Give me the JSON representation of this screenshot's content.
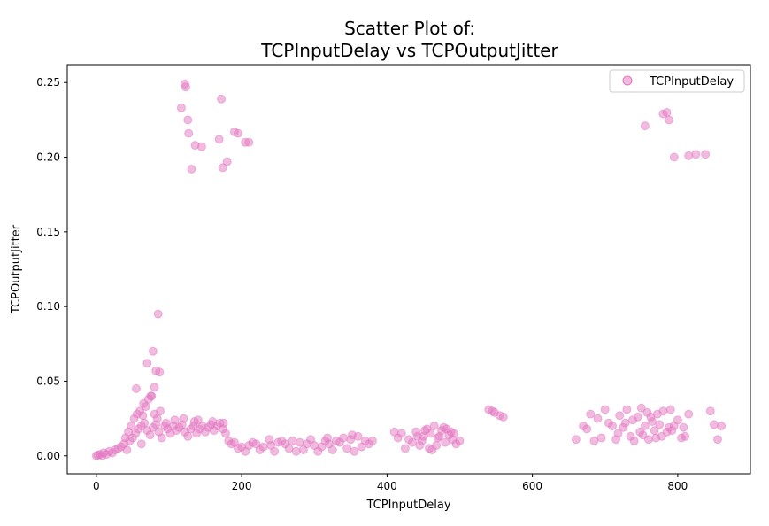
{
  "chart_data": {
    "type": "scatter",
    "title_line1": "Scatter Plot of:",
    "title_line2": "TCPInputDelay vs TCPOutputJitter",
    "xlabel": "TCPInputDelay",
    "ylabel": "TCPOutputJitter",
    "xlim": [
      -40,
      900
    ],
    "ylim": [
      -0.012,
      0.262
    ],
    "x_ticks": [
      0,
      200,
      400,
      600,
      800
    ],
    "x_tick_labels": [
      "0",
      "200",
      "400",
      "600",
      "800"
    ],
    "y_ticks": [
      0.0,
      0.05,
      0.1,
      0.15,
      0.2,
      0.25
    ],
    "y_tick_labels": [
      "0.00",
      "0.05",
      "0.10",
      "0.15",
      "0.20",
      "0.25"
    ],
    "grid": false,
    "legend_position": "top-right",
    "series": [
      {
        "name": "TCPInputDelay",
        "color": "#e377c2",
        "opacity": 0.5,
        "points": [
          [
            0,
            0.0
          ],
          [
            2,
            0.0005
          ],
          [
            5,
            0.001
          ],
          [
            8,
            0.0
          ],
          [
            10,
            0.002
          ],
          [
            14,
            0.001
          ],
          [
            18,
            0.003
          ],
          [
            22,
            0.002
          ],
          [
            26,
            0.004
          ],
          [
            30,
            0.005
          ],
          [
            34,
            0.006
          ],
          [
            38,
            0.008
          ],
          [
            42,
            0.004
          ],
          [
            46,
            0.01
          ],
          [
            50,
            0.012
          ],
          [
            54,
            0.015
          ],
          [
            58,
            0.018
          ],
          [
            62,
            0.02
          ],
          [
            66,
            0.022
          ],
          [
            70,
            0.017
          ],
          [
            74,
            0.014
          ],
          [
            78,
            0.019
          ],
          [
            82,
            0.021
          ],
          [
            86,
            0.016
          ],
          [
            90,
            0.012
          ],
          [
            94,
            0.02
          ],
          [
            98,
            0.018
          ],
          [
            102,
            0.015
          ],
          [
            106,
            0.02
          ],
          [
            110,
            0.017
          ],
          [
            114,
            0.019
          ],
          [
            118,
            0.021
          ],
          [
            122,
            0.016
          ],
          [
            126,
            0.013
          ],
          [
            130,
            0.018
          ],
          [
            134,
            0.02
          ],
          [
            138,
            0.015
          ],
          [
            142,
            0.018
          ],
          [
            146,
            0.02
          ],
          [
            150,
            0.016
          ],
          [
            154,
            0.019
          ],
          [
            158,
            0.021
          ],
          [
            162,
            0.017
          ],
          [
            166,
            0.02
          ],
          [
            170,
            0.022
          ],
          [
            174,
            0.018
          ],
          [
            178,
            0.015
          ],
          [
            182,
            0.01
          ],
          [
            186,
            0.008
          ],
          [
            190,
            0.009
          ],
          [
            40,
            0.012
          ],
          [
            44,
            0.016
          ],
          [
            48,
            0.02
          ],
          [
            52,
            0.025
          ],
          [
            56,
            0.028
          ],
          [
            60,
            0.03
          ],
          [
            64,
            0.027
          ],
          [
            68,
            0.033
          ],
          [
            72,
            0.038
          ],
          [
            76,
            0.04
          ],
          [
            80,
            0.028
          ],
          [
            84,
            0.025
          ],
          [
            88,
            0.03
          ],
          [
            55,
            0.045
          ],
          [
            65,
            0.035
          ],
          [
            70,
            0.062
          ],
          [
            78,
            0.07
          ],
          [
            82,
            0.057
          ],
          [
            87,
            0.056
          ],
          [
            80,
            0.046
          ],
          [
            75,
            0.04
          ],
          [
            85,
            0.095
          ],
          [
            62,
            0.008
          ],
          [
            96,
            0.022
          ],
          [
            108,
            0.024
          ],
          [
            120,
            0.025
          ],
          [
            140,
            0.024
          ],
          [
            160,
            0.023
          ],
          [
            175,
            0.022
          ],
          [
            135,
            0.023
          ],
          [
            200,
            0.006
          ],
          [
            210,
            0.007
          ],
          [
            220,
            0.008
          ],
          [
            230,
            0.006
          ],
          [
            240,
            0.007
          ],
          [
            250,
            0.009
          ],
          [
            260,
            0.008
          ],
          [
            270,
            0.01
          ],
          [
            280,
            0.009
          ],
          [
            290,
            0.008
          ],
          [
            300,
            0.007
          ],
          [
            310,
            0.006
          ],
          [
            320,
            0.008
          ],
          [
            330,
            0.01
          ],
          [
            340,
            0.012
          ],
          [
            350,
            0.011
          ],
          [
            360,
            0.013
          ],
          [
            370,
            0.01
          ],
          [
            205,
            0.003
          ],
          [
            225,
            0.004
          ],
          [
            245,
            0.003
          ],
          [
            265,
            0.005
          ],
          [
            285,
            0.004
          ],
          [
            305,
            0.003
          ],
          [
            325,
            0.004
          ],
          [
            345,
            0.005
          ],
          [
            365,
            0.006
          ],
          [
            215,
            0.009
          ],
          [
            255,
            0.01
          ],
          [
            295,
            0.011
          ],
          [
            335,
            0.009
          ],
          [
            375,
            0.008
          ],
          [
            380,
            0.01
          ],
          [
            195,
            0.005
          ],
          [
            275,
            0.003
          ],
          [
            315,
            0.01
          ],
          [
            355,
            0.003
          ],
          [
            238,
            0.011
          ],
          [
            318,
            0.012
          ],
          [
            352,
            0.014
          ],
          [
            410,
            0.016
          ],
          [
            415,
            0.012
          ],
          [
            420,
            0.015
          ],
          [
            425,
            0.005
          ],
          [
            430,
            0.011
          ],
          [
            435,
            0.009
          ],
          [
            440,
            0.016
          ],
          [
            445,
            0.007
          ],
          [
            450,
            0.013
          ],
          [
            455,
            0.018
          ],
          [
            460,
            0.015
          ],
          [
            465,
            0.02
          ],
          [
            470,
            0.012
          ],
          [
            475,
            0.017
          ],
          [
            480,
            0.009
          ],
          [
            485,
            0.014
          ],
          [
            490,
            0.011
          ],
          [
            495,
            0.008
          ],
          [
            500,
            0.01
          ],
          [
            458,
            0.005
          ],
          [
            468,
            0.007
          ],
          [
            478,
            0.019
          ],
          [
            488,
            0.016
          ],
          [
            448,
            0.01
          ],
          [
            462,
            0.004
          ],
          [
            472,
            0.013
          ],
          [
            482,
            0.018
          ],
          [
            452,
            0.017
          ],
          [
            442,
            0.013
          ],
          [
            492,
            0.015
          ],
          [
            540,
            0.031
          ],
          [
            545,
            0.03
          ],
          [
            548,
            0.029
          ],
          [
            555,
            0.027
          ],
          [
            560,
            0.026
          ],
          [
            660,
            0.011
          ],
          [
            670,
            0.02
          ],
          [
            675,
            0.018
          ],
          [
            680,
            0.028
          ],
          [
            685,
            0.01
          ],
          [
            690,
            0.025
          ],
          [
            695,
            0.012
          ],
          [
            700,
            0.031
          ],
          [
            705,
            0.022
          ],
          [
            710,
            0.02
          ],
          [
            715,
            0.011
          ],
          [
            720,
            0.027
          ],
          [
            725,
            0.019
          ],
          [
            730,
            0.031
          ],
          [
            735,
            0.013
          ],
          [
            740,
            0.01
          ],
          [
            745,
            0.026
          ],
          [
            750,
            0.032
          ],
          [
            752,
            0.014
          ],
          [
            755,
            0.02
          ],
          [
            758,
            0.029
          ],
          [
            760,
            0.011
          ],
          [
            765,
            0.023
          ],
          [
            768,
            0.017
          ],
          [
            770,
            0.012
          ],
          [
            772,
            0.028
          ],
          [
            775,
            0.021
          ],
          [
            778,
            0.013
          ],
          [
            780,
            0.03
          ],
          [
            785,
            0.016
          ],
          [
            788,
            0.019
          ],
          [
            790,
            0.031
          ],
          [
            795,
            0.02
          ],
          [
            800,
            0.024
          ],
          [
            805,
            0.012
          ],
          [
            808,
            0.019
          ],
          [
            810,
            0.013
          ],
          [
            815,
            0.028
          ],
          [
            845,
            0.03
          ],
          [
            850,
            0.021
          ],
          [
            855,
            0.011
          ],
          [
            860,
            0.02
          ],
          [
            738,
            0.024
          ],
          [
            748,
            0.016
          ],
          [
            718,
            0.015
          ],
          [
            728,
            0.022
          ],
          [
            763,
            0.026
          ],
          [
            792,
            0.017
          ],
          [
            117,
            0.233
          ],
          [
            122,
            0.249
          ],
          [
            123,
            0.247
          ],
          [
            126,
            0.225
          ],
          [
            127,
            0.216
          ],
          [
            131,
            0.192
          ],
          [
            136,
            0.208
          ],
          [
            145,
            0.207
          ],
          [
            169,
            0.212
          ],
          [
            172,
            0.239
          ],
          [
            174,
            0.193
          ],
          [
            180,
            0.197
          ],
          [
            190,
            0.217
          ],
          [
            195,
            0.216
          ],
          [
            205,
            0.21
          ],
          [
            210,
            0.21
          ],
          [
            755,
            0.221
          ],
          [
            780,
            0.229
          ],
          [
            785,
            0.23
          ],
          [
            788,
            0.225
          ],
          [
            795,
            0.2
          ],
          [
            815,
            0.201
          ],
          [
            825,
            0.202
          ],
          [
            838,
            0.202
          ]
        ]
      }
    ]
  }
}
